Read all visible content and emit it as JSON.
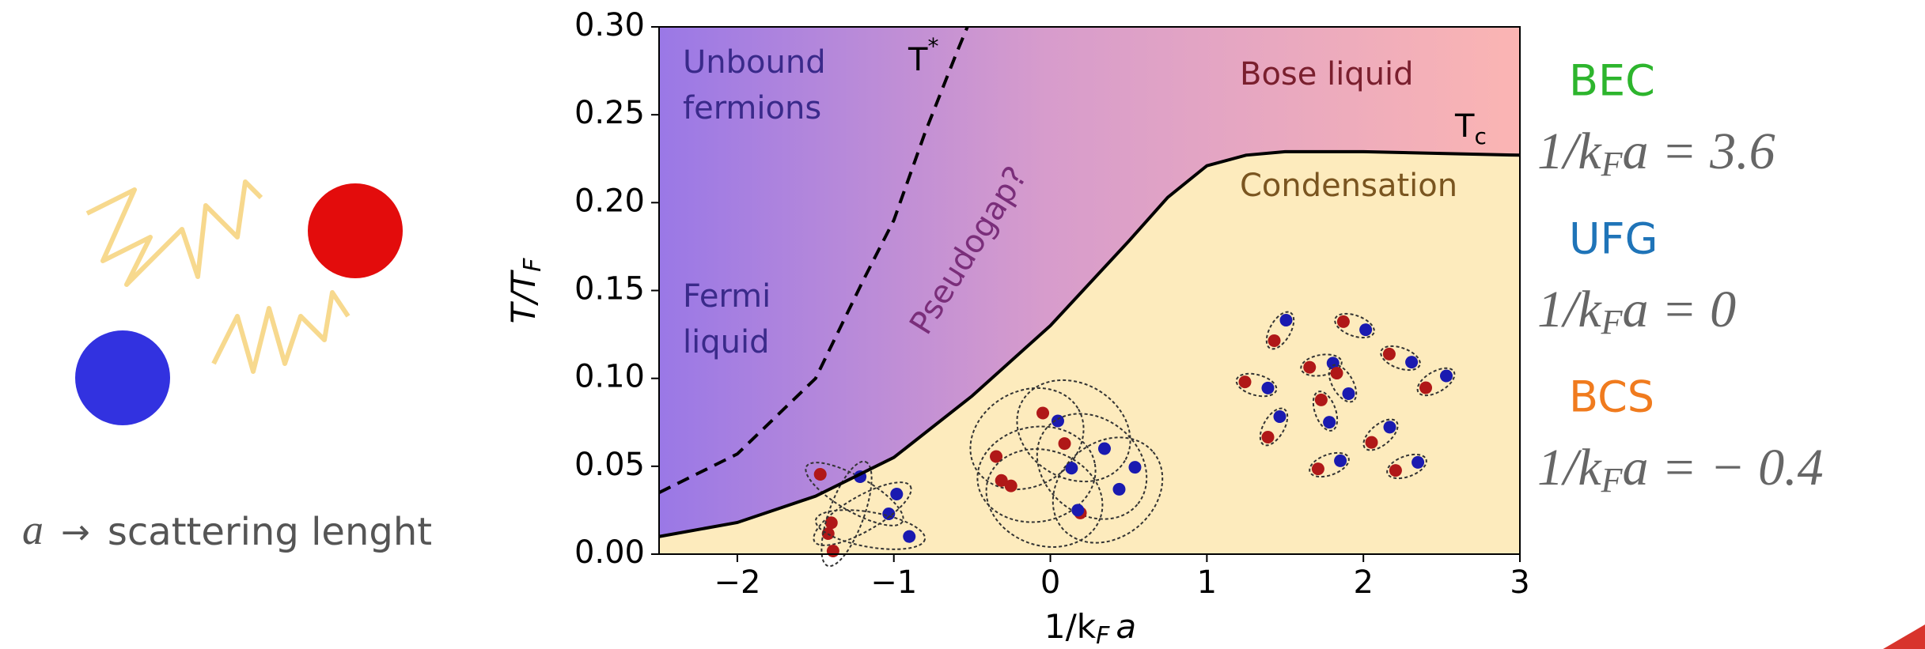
{
  "illustration": {
    "caption": {
      "symbol": "a",
      "arrow": "→",
      "text": "scattering lenght"
    }
  },
  "chart_data": {
    "type": "line",
    "x_label": {
      "main": "1/k",
      "sub": "F",
      "end": "a"
    },
    "y_label": {
      "main": "T/T",
      "sub": "F"
    },
    "xlim": [
      -2.5,
      3
    ],
    "xticks": [
      {
        "value": -2,
        "label": "−2"
      },
      {
        "value": -1,
        "label": "−1"
      },
      0,
      1,
      2,
      3
    ],
    "ylim": [
      0,
      0.3
    ],
    "yticks": [
      {
        "value": 0,
        "label": "0.00"
      },
      {
        "value": 0.05,
        "label": "0.05"
      },
      {
        "value": 0.1,
        "label": "0.10"
      },
      {
        "value": 0.15,
        "label": "0.15"
      },
      {
        "value": 0.2,
        "label": "0.20"
      },
      {
        "value": 0.25,
        "label": "0.25"
      },
      {
        "value": 0.3,
        "label": "0.30"
      }
    ],
    "series": [
      {
        "style": "solid",
        "color": "#000000",
        "x": [
          -2.5,
          -2,
          -1.5,
          -1,
          -0.5,
          0,
          0.5,
          0.75,
          1,
          1.25,
          1.5,
          2,
          2.5,
          3
        ],
        "values": [
          0.01,
          0.018,
          0.033,
          0.055,
          0.09,
          0.13,
          0.178,
          0.203,
          0.221,
          0.227,
          0.229,
          0.229,
          0.228,
          0.227
        ]
      },
      {
        "style": "dashed",
        "color": "#000000",
        "x": [
          -2.5,
          -2,
          -1.5,
          -1.2,
          -1,
          -0.8,
          -0.6,
          -0.53
        ],
        "values": [
          0.035,
          0.057,
          0.1,
          0.155,
          0.19,
          0.24,
          0.285,
          0.3
        ]
      }
    ],
    "annotations": [
      {
        "lines": [
          "Unbound",
          "fermions"
        ],
        "color": "#3a2a8a"
      },
      {
        "lines": [
          "Fermi",
          "liquid"
        ],
        "color": "#3a2a8a"
      },
      {
        "lines": [
          "Pseudogap?"
        ],
        "color": "#7a2e7a"
      },
      {
        "lines": [
          "Bose liquid"
        ],
        "color": "#7a1f2e"
      },
      {
        "lines": [
          "Condensation"
        ],
        "color": "#7a5520"
      }
    ],
    "curve_labels": [
      {
        "main": "T",
        "sup": "*"
      },
      {
        "main": "T",
        "sub": "c"
      }
    ]
  },
  "regimes": [
    {
      "name": "BEC",
      "color": "#2db52d",
      "formula": {
        "main": "1/k",
        "sub": "F",
        "end": "a = 3.6"
      }
    },
    {
      "name": "UFG",
      "color": "#1f74b8",
      "formula": {
        "main": "1/k",
        "sub": "F",
        "end": "a = 0"
      }
    },
    {
      "name": "BCS",
      "color": "#f07b1e",
      "formula": {
        "main": "1/k",
        "sub": "F",
        "end": "a = − 0.4"
      }
    }
  ]
}
